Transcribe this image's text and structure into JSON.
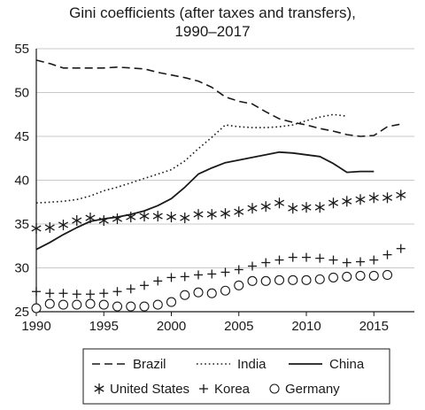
{
  "chart_data": {
    "type": "line",
    "title": "Gini coefficients (after taxes and transfers),",
    "subtitle": "1990–2017",
    "xlabel": "",
    "ylabel": "",
    "xlim": [
      1990,
      2018
    ],
    "ylim": [
      25,
      55
    ],
    "xticks": [
      "1990",
      "1995",
      "2000",
      "2005",
      "2010",
      "2015"
    ],
    "yticks": [
      "25",
      "30",
      "35",
      "40",
      "45",
      "50",
      "55"
    ],
    "grid": "horizontal",
    "legend_position": "bottom",
    "series": [
      {
        "name": "Brazil",
        "style": "dashed",
        "color": "#1a1a1a",
        "x": [
          1990,
          1991,
          1992,
          1993,
          1994,
          1995,
          1996,
          1997,
          1998,
          1999,
          2000,
          2001,
          2002,
          2003,
          2004,
          2005,
          2006,
          2007,
          2008,
          2009,
          2010,
          2011,
          2012,
          2013,
          2014,
          2015,
          2016,
          2017
        ],
        "values": [
          53.7,
          53.3,
          52.8,
          52.8,
          52.8,
          52.8,
          52.9,
          52.8,
          52.7,
          52.3,
          52.0,
          51.7,
          51.3,
          50.6,
          49.5,
          49.0,
          48.7,
          47.8,
          47.0,
          46.6,
          46.3,
          45.9,
          45.6,
          45.2,
          45.0,
          45.1,
          46.1,
          46.4
        ]
      },
      {
        "name": "India",
        "style": "dotted",
        "color": "#1a1a1a",
        "x": [
          1990,
          1991,
          1992,
          1993,
          1994,
          1995,
          1996,
          1997,
          1998,
          1999,
          2000,
          2001,
          2002,
          2003,
          2004,
          2005,
          2006,
          2007,
          2008,
          2009,
          2010,
          2011,
          2012,
          2013
        ],
        "values": [
          37.4,
          37.5,
          37.6,
          37.8,
          38.2,
          38.8,
          39.2,
          39.7,
          40.2,
          40.7,
          41.2,
          42.2,
          43.6,
          44.9,
          46.3,
          46.1,
          46.0,
          46.0,
          46.1,
          46.3,
          46.8,
          47.2,
          47.5,
          47.3
        ]
      },
      {
        "name": "China",
        "style": "solid",
        "color": "#1a1a1a",
        "x": [
          1990,
          1991,
          1992,
          1993,
          1994,
          1995,
          1996,
          1997,
          1998,
          1999,
          2000,
          2001,
          2002,
          2003,
          2004,
          2005,
          2006,
          2007,
          2008,
          2009,
          2010,
          2011,
          2012,
          2013,
          2014,
          2015
        ],
        "values": [
          32.1,
          32.9,
          33.8,
          34.6,
          35.3,
          35.6,
          35.8,
          36.1,
          36.5,
          37.1,
          37.9,
          39.2,
          40.7,
          41.4,
          42.0,
          42.3,
          42.6,
          42.9,
          43.2,
          43.1,
          42.9,
          42.7,
          41.9,
          40.9,
          41.0,
          41.0
        ]
      },
      {
        "name": "United States",
        "style": "asterisk",
        "color": "#1a1a1a",
        "x": [
          1990,
          1991,
          1992,
          1993,
          1994,
          1995,
          1996,
          1997,
          1998,
          1999,
          2000,
          2001,
          2002,
          2003,
          2004,
          2005,
          2006,
          2007,
          2008,
          2009,
          2010,
          2011,
          2012,
          2013,
          2014,
          2015,
          2016,
          2017
        ],
        "values": [
          34.5,
          34.6,
          34.9,
          35.4,
          35.7,
          35.4,
          35.6,
          35.8,
          35.9,
          35.9,
          35.8,
          35.7,
          36.1,
          36.1,
          36.2,
          36.4,
          36.8,
          37.0,
          37.4,
          36.8,
          36.9,
          36.9,
          37.4,
          37.6,
          37.8,
          38.0,
          38.0,
          38.3
        ]
      },
      {
        "name": "Korea",
        "style": "plus",
        "color": "#1a1a1a",
        "x": [
          1990,
          1991,
          1992,
          1993,
          1994,
          1995,
          1996,
          1997,
          1998,
          1999,
          2000,
          2001,
          2002,
          2003,
          2004,
          2005,
          2006,
          2007,
          2008,
          2009,
          2010,
          2011,
          2012,
          2013,
          2014,
          2015,
          2016,
          2017
        ],
        "values": [
          27.3,
          27.1,
          27.1,
          27.0,
          27.0,
          27.1,
          27.3,
          27.6,
          28.0,
          28.5,
          28.9,
          29.0,
          29.2,
          29.3,
          29.5,
          29.8,
          30.2,
          30.6,
          30.9,
          31.2,
          31.2,
          31.1,
          30.9,
          30.6,
          30.7,
          30.9,
          31.5,
          32.2
        ]
      },
      {
        "name": "Germany",
        "style": "circle",
        "color": "#1a1a1a",
        "x": [
          1990,
          1991,
          1992,
          1993,
          1994,
          1995,
          1996,
          1997,
          1998,
          1999,
          2000,
          2001,
          2002,
          2003,
          2004,
          2005,
          2006,
          2007,
          2008,
          2009,
          2010,
          2011,
          2012,
          2013,
          2014,
          2015,
          2016
        ],
        "values": [
          25.4,
          25.9,
          25.8,
          25.8,
          25.9,
          25.8,
          25.6,
          25.6,
          25.6,
          25.8,
          26.1,
          26.9,
          27.2,
          27.1,
          27.4,
          28.0,
          28.5,
          28.5,
          28.6,
          28.6,
          28.6,
          28.7,
          28.9,
          29.0,
          29.1,
          29.1,
          29.2
        ]
      }
    ]
  }
}
